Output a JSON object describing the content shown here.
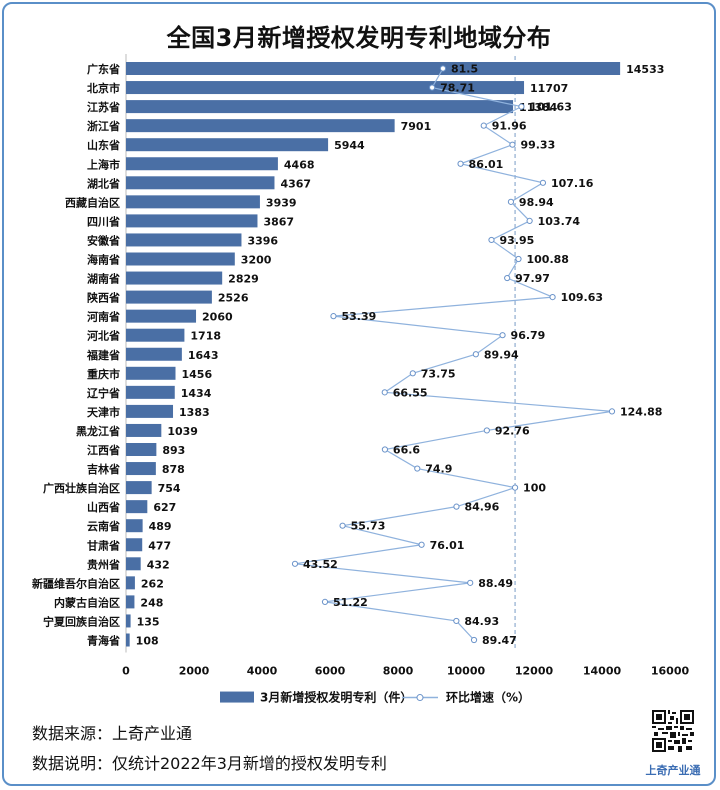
{
  "title": "全国3月新增授权发明专利地域分布",
  "chart_data": {
    "type": "bar",
    "categories": [
      "广东省",
      "北京市",
      "江苏省",
      "浙江省",
      "山东省",
      "上海市",
      "湖北省",
      "西藏自治区",
      "四川省",
      "安徽省",
      "海南省",
      "湖南省",
      "陕西省",
      "河南省",
      "河北省",
      "福建省",
      "重庆市",
      "辽宁省",
      "天津市",
      "黑龙江省",
      "江西省",
      "吉林省",
      "广西壮族自治区",
      "山西省",
      "云南省",
      "甘肃省",
      "贵州省",
      "新疆维吾尔自治区",
      "内蒙古自治区",
      "宁夏回族自治区",
      "青海省"
    ],
    "series": [
      {
        "name": "3月新增授权发明专利（件）",
        "type": "bar",
        "color": "#4a6fa5",
        "values": [
          14533,
          11707,
          11384,
          7901,
          5944,
          4468,
          4367,
          3939,
          3867,
          3396,
          3200,
          2829,
          2526,
          2060,
          1718,
          1643,
          1456,
          1434,
          1383,
          1039,
          893,
          878,
          754,
          627,
          489,
          477,
          432,
          262,
          248,
          135,
          108
        ]
      },
      {
        "name": "环比增速（%）",
        "type": "line",
        "color": "#8fb2dd",
        "values": [
          81.5,
          78.71,
          101.63,
          91.96,
          99.33,
          86.01,
          107.16,
          98.94,
          103.74,
          93.95,
          100.88,
          97.97,
          109.63,
          53.39,
          96.79,
          89.94,
          73.75,
          66.55,
          124.88,
          92.76,
          66.6,
          74.9,
          100,
          84.96,
          55.73,
          76.01,
          43.52,
          88.49,
          51.22,
          84.93,
          89.47
        ]
      }
    ],
    "x_ticks": [
      "0",
      "2000",
      "4000",
      "6000",
      "8000",
      "10000",
      "12000",
      "14000",
      "16000"
    ],
    "xlim": [
      0,
      16000
    ],
    "reference_line": {
      "value": 100,
      "style": "dashed"
    },
    "legend_position": "bottom"
  },
  "footer": {
    "source": "数据来源：上奇产业通",
    "note": "数据说明：仅统计2022年3月新增的授权发明专利"
  },
  "brand": "上奇产业通"
}
